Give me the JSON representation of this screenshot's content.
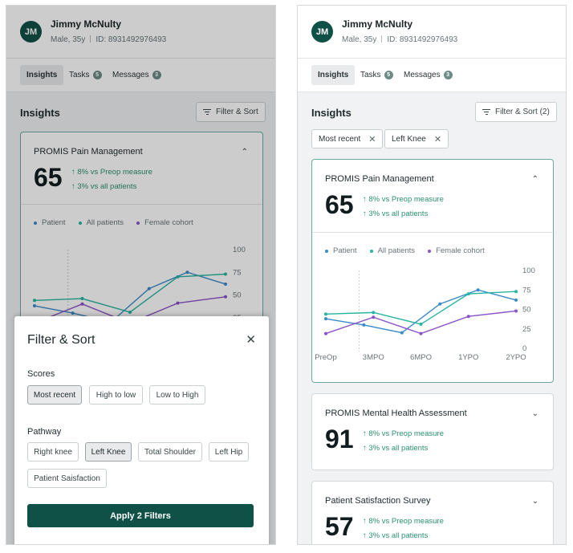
{
  "colors": {
    "brand": "#0f5147",
    "patient": "#3b8bc9",
    "all_patients": "#26b5a2",
    "female_cohort": "#8b52c9",
    "positive": "#2a9070"
  },
  "patient": {
    "initials": "JM",
    "name": "Jimmy McNulty",
    "demographics": "Male, 35y",
    "id": "ID: 8931492976493"
  },
  "tabs": [
    {
      "label": "Insights",
      "active": true
    },
    {
      "label": "Tasks",
      "badge": "5"
    },
    {
      "label": "Messages",
      "badge": "3"
    }
  ],
  "insights": {
    "title": "Insights",
    "filter_button": "Filter & Sort",
    "filter_button_applied": "Filter & Sort (2)",
    "active_filters": [
      "Most recent",
      "Left Knee"
    ]
  },
  "cards": [
    {
      "title": "PROMIS Pain Management",
      "score": "65",
      "deltas": [
        "8% vs Preop measure",
        "3% vs all patients"
      ],
      "expanded": true,
      "legend": [
        "Patient",
        "All patients",
        "Female cohort"
      ]
    },
    {
      "title": "PROMIS Mental Health Assessment",
      "score": "91",
      "deltas": [
        "8% vs Preop measure",
        "3% vs all patients"
      ]
    },
    {
      "title": "Patient Satisfaction Survey",
      "score": "57",
      "deltas": [
        "8% vs Preop measure",
        "3% vs all patients"
      ]
    }
  ],
  "chart_data": {
    "type": "line",
    "x": [
      "PreOp",
      "3MPO",
      "6MPO",
      "1YPO",
      "2YPO"
    ],
    "yticks": [
      "100",
      "75",
      "50",
      "25",
      "0"
    ],
    "ylim": [
      0,
      100
    ],
    "series": [
      {
        "name": "Patient",
        "color": "#3b8bc9",
        "x": [
          "PreOp",
          "PreOp-mid",
          "3MPO",
          "6MPO",
          "1YPO",
          "2YPO"
        ],
        "values": [
          38,
          30,
          20,
          57,
          75,
          62
        ]
      },
      {
        "name": "All patients",
        "color": "#26b5a2",
        "values": [
          44,
          46,
          31,
          70,
          73
        ]
      },
      {
        "name": "Female cohort",
        "color": "#8b52c9",
        "values": [
          19,
          40,
          19,
          41,
          48
        ]
      }
    ],
    "legend": [
      "Patient",
      "All patients",
      "Female cohort"
    ],
    "grid": false
  },
  "filter_sheet": {
    "title": "Filter & Sort",
    "scores_label": "Scores",
    "score_options": [
      "Most recent",
      "High to low",
      "Low to High"
    ],
    "selected_score": "Most recent",
    "pathway_label": "Pathway",
    "pathway_options": [
      "Right knee",
      "Left Knee",
      "Total Shoulder",
      "Left Hip",
      "Patient Saisfaction"
    ],
    "selected_pathway": "Left Knee",
    "apply_label": "Apply 2 Filters"
  },
  "icons": {
    "close": "close-icon",
    "chevron_up": "chevron-up-icon",
    "chevron_down": "chevron-down-icon",
    "filter": "filter-icon",
    "arrow_up": "arrow-up-icon"
  }
}
